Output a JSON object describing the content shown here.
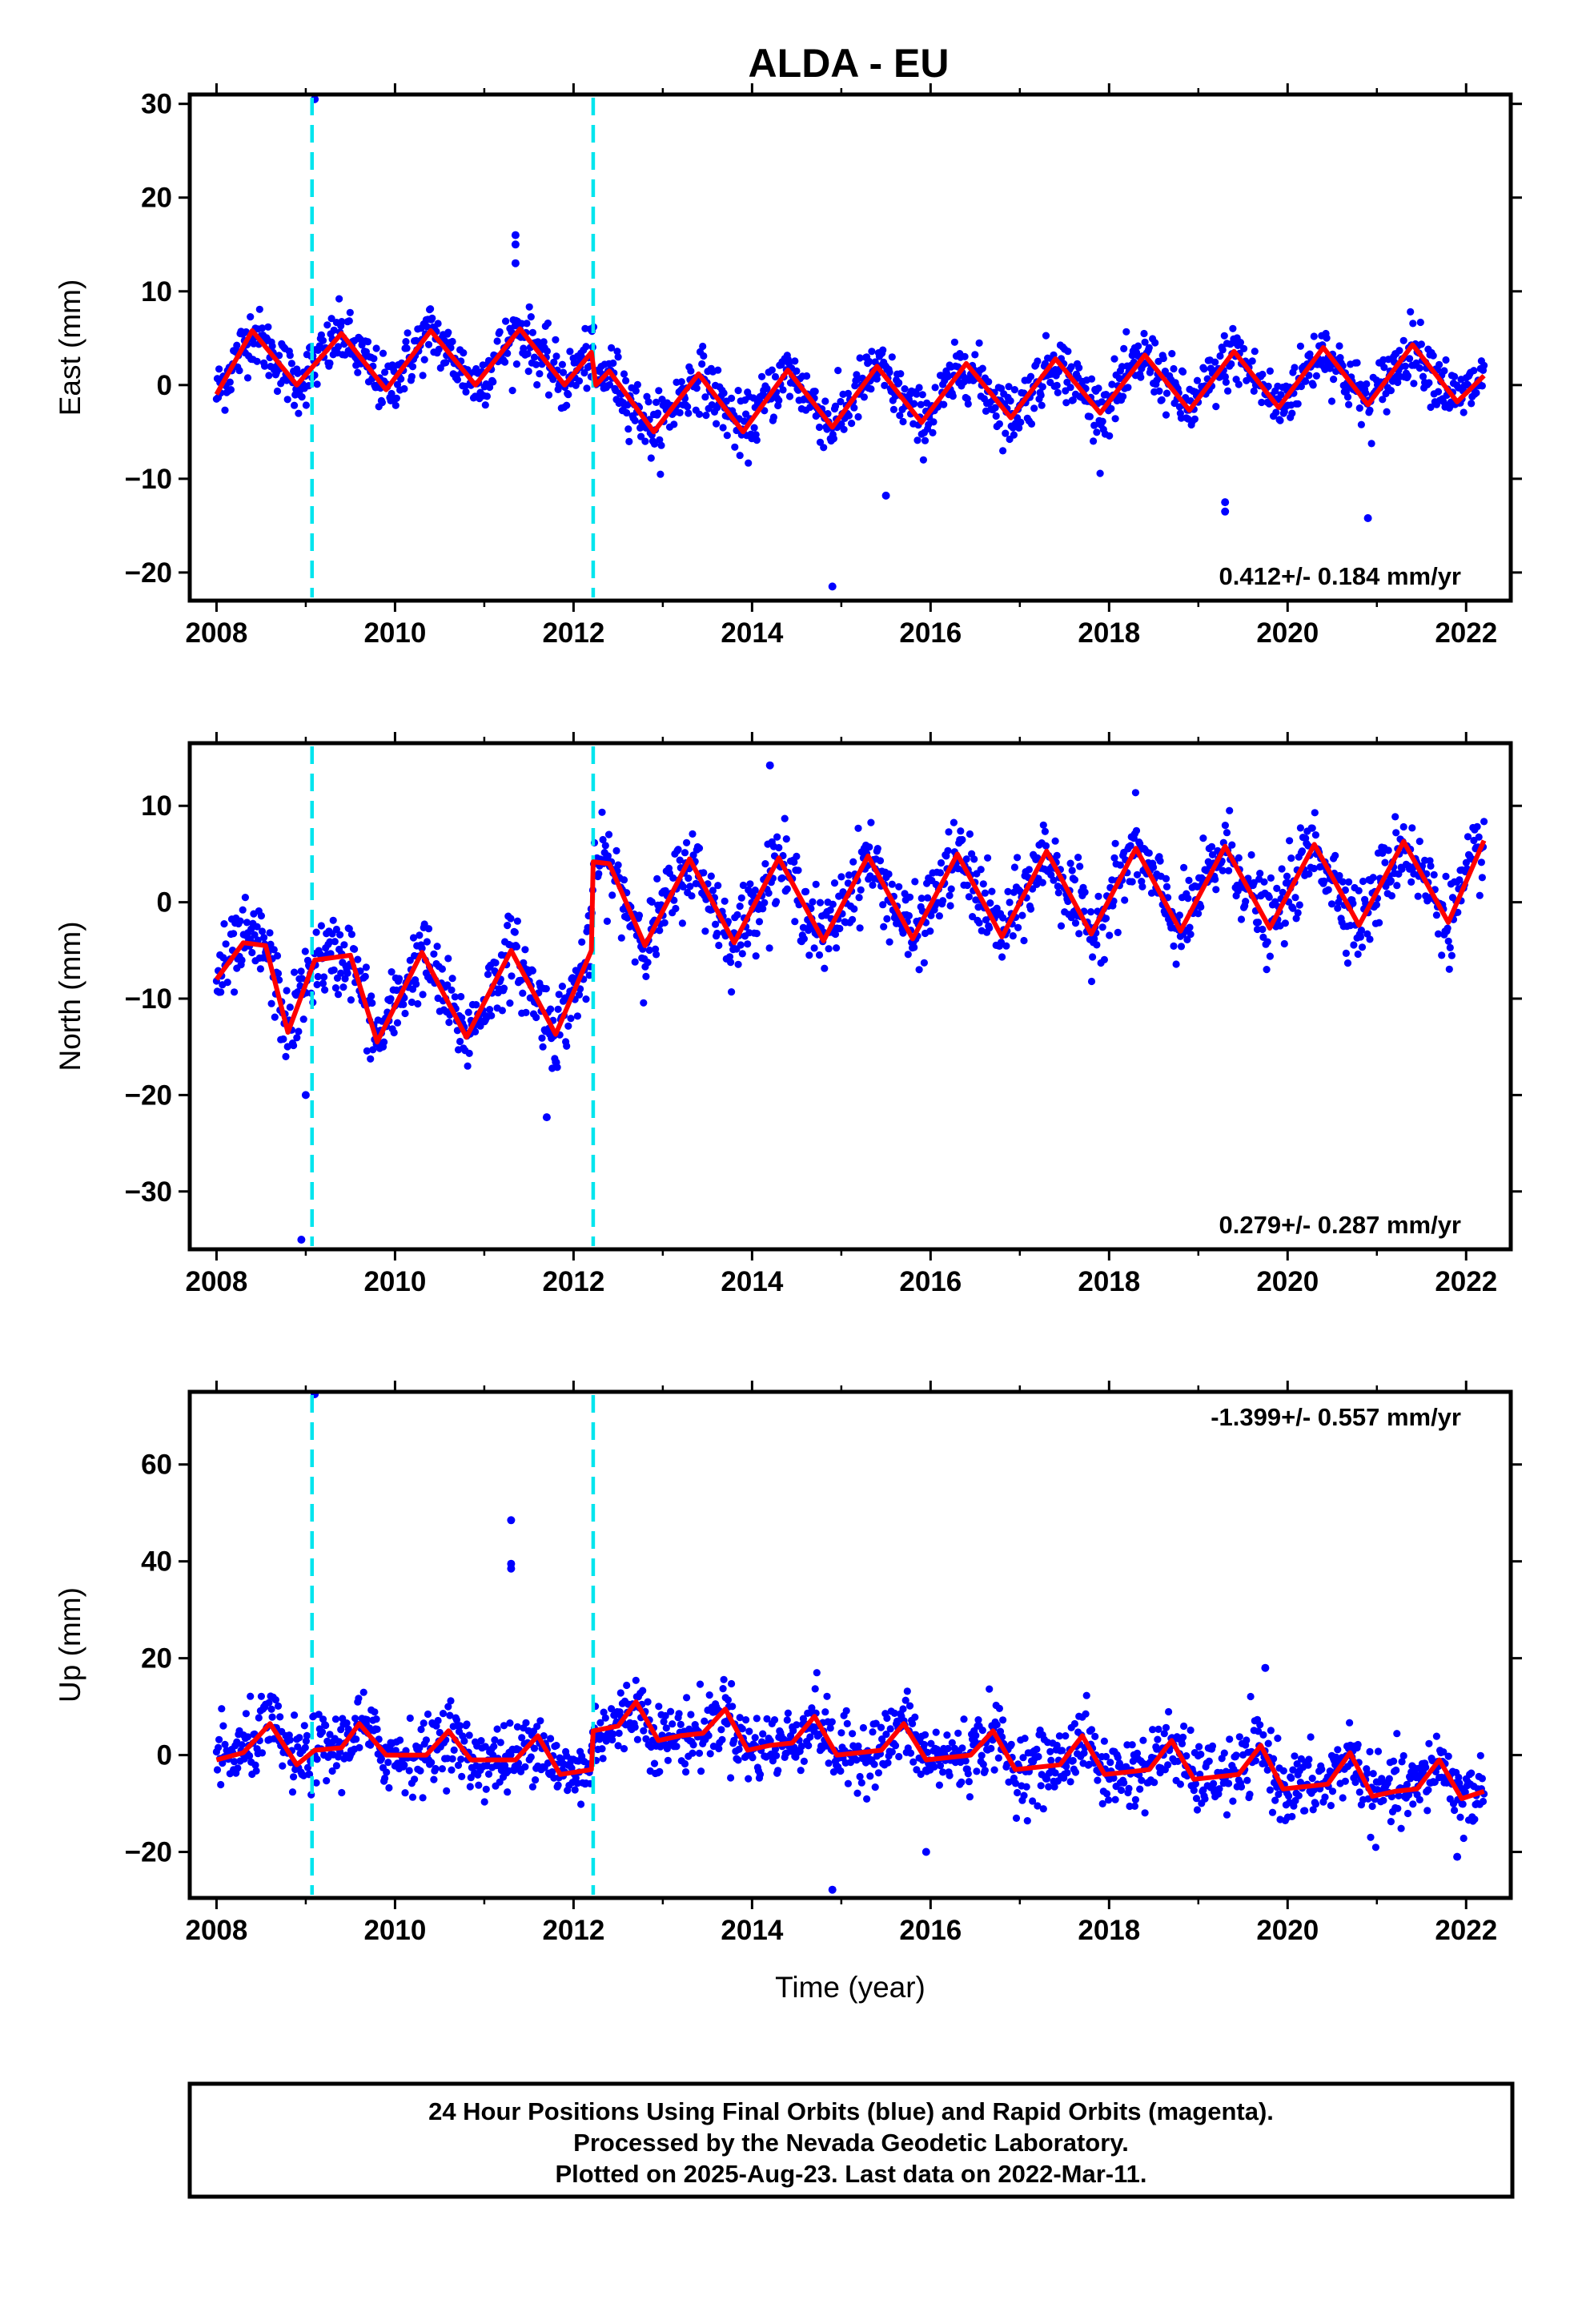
{
  "title": "ALDA - EU",
  "chart_data": [
    {
      "type": "scatter",
      "ylabel": "East (mm)",
      "xlabel": "",
      "xlim": [
        2007.7,
        2022.5
      ],
      "ylim": [
        -23,
        31
      ],
      "xticks": [
        2008,
        2010,
        2012,
        2014,
        2016,
        2018,
        2020,
        2022
      ],
      "yticks": [
        -20,
        -10,
        0,
        10,
        20,
        30
      ],
      "rate_label": "0.412+/- 0.184 mm/yr",
      "rate_position": "bottom-right",
      "offsets": [
        2009.07,
        2012.22
      ],
      "fit": {
        "x": [
          2008.0,
          2008.4,
          2008.9,
          2009.4,
          2009.9,
          2010.4,
          2010.9,
          2011.4,
          2011.9,
          2012.2,
          2012.25,
          2012.4,
          2012.9,
          2013.4,
          2013.9,
          2014.4,
          2014.9,
          2015.4,
          2015.9,
          2016.4,
          2016.9,
          2017.4,
          2017.9,
          2018.4,
          2018.9,
          2019.4,
          2019.9,
          2020.4,
          2020.9,
          2021.4,
          2021.9,
          2022.2
        ],
        "y": [
          -1,
          5.8,
          0,
          5.5,
          -0.5,
          5.8,
          0,
          6,
          0,
          3.5,
          0,
          1.5,
          -5,
          1.2,
          -5,
          1.6,
          -4.5,
          2,
          -4,
          2.3,
          -3.5,
          2.8,
          -3,
          3.2,
          -2.7,
          3.6,
          -2.4,
          4,
          -2.1,
          4.3,
          -1.8,
          1
        ]
      },
      "outliers": {
        "x": [
          2009.1,
          2011.35,
          2011.35,
          2011.35,
          2014.9,
          2015.5,
          2019.3,
          2019.3,
          2020.9
        ],
        "y": [
          30.5,
          16,
          15,
          13,
          -21.5,
          -11.8,
          -12.5,
          -13.5,
          -14.2
        ]
      },
      "series": [
        {
          "name": "Final Orbits",
          "color": "#0000ff",
          "noise_sd": 1.6
        },
        {
          "name": "Fit",
          "color": "#ff0000"
        }
      ]
    },
    {
      "type": "scatter",
      "ylabel": "North (mm)",
      "xlabel": "",
      "xlim": [
        2007.7,
        2022.5
      ],
      "ylim": [
        -36,
        16.5
      ],
      "xticks": [
        2008,
        2010,
        2012,
        2014,
        2016,
        2018,
        2020,
        2022
      ],
      "yticks": [
        -30,
        -20,
        -10,
        0,
        10
      ],
      "rate_label": "0.279+/- 0.287 mm/yr",
      "rate_position": "bottom-right",
      "offsets": [
        2009.07,
        2012.22
      ],
      "fit": {
        "x": [
          2008.0,
          2008.3,
          2008.55,
          2008.8,
          2009.1,
          2009.5,
          2009.8,
          2010.3,
          2010.8,
          2011.3,
          2011.8,
          2012.2,
          2012.22,
          2012.4,
          2012.8,
          2013.3,
          2013.8,
          2014.3,
          2014.8,
          2015.3,
          2015.8,
          2016.3,
          2016.8,
          2017.3,
          2017.8,
          2018.3,
          2018.8,
          2019.3,
          2019.8,
          2020.3,
          2020.8,
          2021.3,
          2021.8,
          2022.2
        ],
        "y": [
          -8,
          -4.2,
          -4.5,
          -13.5,
          -6,
          -5.5,
          -14.5,
          -5.2,
          -14,
          -5,
          -13.7,
          -5,
          4.2,
          4,
          -4.5,
          4.5,
          -4.2,
          4.6,
          -4,
          4.8,
          -3.8,
          5,
          -3.6,
          5.3,
          -3.3,
          5.6,
          -3,
          5.8,
          -2.7,
          6,
          -2.4,
          6.3,
          -2.1,
          6.4
        ]
      },
      "outliers": {
        "x": [
          2008.95,
          2009.0,
          2011.7,
          2014.2
        ],
        "y": [
          -35,
          -20,
          -22.3,
          14.2
        ]
      },
      "series": [
        {
          "name": "Final Orbits",
          "color": "#0000ff",
          "noise_sd": 2.0
        },
        {
          "name": "Fit",
          "color": "#ff0000"
        }
      ]
    },
    {
      "type": "scatter",
      "ylabel": "Up (mm)",
      "xlabel": "Time (year)",
      "xlim": [
        2007.7,
        2022.5
      ],
      "ylim": [
        -29.5,
        75
      ],
      "xticks": [
        2008,
        2010,
        2012,
        2014,
        2016,
        2018,
        2020,
        2022
      ],
      "yticks": [
        -20,
        0,
        20,
        40,
        60
      ],
      "rate_label": "-1.399+/- 0.557 mm/yr",
      "rate_position": "top-right",
      "offsets": [
        2009.07,
        2012.22
      ],
      "fit": {
        "x": [
          2008.0,
          2008.3,
          2008.6,
          2008.9,
          2009.1,
          2009.4,
          2009.6,
          2009.9,
          2010.1,
          2010.35,
          2010.6,
          2010.85,
          2011.1,
          2011.35,
          2011.6,
          2011.85,
          2012.2,
          2012.22,
          2012.5,
          2012.7,
          2012.95,
          2013.2,
          2013.45,
          2013.7,
          2013.95,
          2014.2,
          2014.45,
          2014.7,
          2014.95,
          2015.2,
          2015.45,
          2015.7,
          2015.95,
          2016.2,
          2016.45,
          2016.7,
          2016.95,
          2017.2,
          2017.45,
          2017.7,
          2017.95,
          2018.2,
          2018.45,
          2018.7,
          2018.95,
          2019.2,
          2019.45,
          2019.7,
          2019.95,
          2020.2,
          2020.45,
          2020.7,
          2020.95,
          2021.2,
          2021.45,
          2021.7,
          2021.95,
          2022.2
        ],
        "y": [
          -1,
          0.5,
          6.5,
          -2,
          1,
          1.5,
          6.5,
          0,
          0,
          0,
          5,
          -1,
          -1,
          -1,
          4,
          -4,
          -3,
          5,
          6,
          11,
          3,
          4,
          4.5,
          9.5,
          1,
          2,
          2.5,
          8,
          0,
          0.5,
          1,
          6.5,
          -1,
          -0.5,
          0,
          5,
          -3,
          -2.5,
          -2,
          4,
          -4,
          -3.5,
          -3,
          3,
          -5,
          -4.5,
          -4,
          2,
          -7,
          -6.5,
          -6,
          0.5,
          -8.5,
          -7.5,
          -7,
          -1,
          -9,
          -7.5
        ]
      },
      "outliers": {
        "x": [
          2009.1,
          2011.3,
          2011.3,
          2011.3,
          2014.9,
          2015.95,
          2019.75,
          2021.9
        ],
        "y": [
          74.5,
          48.5,
          39.5,
          38.5,
          -27.8,
          -20,
          18,
          -21
        ]
      },
      "series": [
        {
          "name": "Final Orbits",
          "color": "#0000ff",
          "noise_sd": 3.6
        },
        {
          "name": "Fit",
          "color": "#ff0000"
        }
      ]
    }
  ],
  "colors": {
    "data_points": "#0000ff",
    "fit_line": "#ff0000",
    "offset_lines": "#00e5ee",
    "frame": "#000000"
  },
  "caption": {
    "line1": "24 Hour Positions Using Final Orbits (blue) and Rapid Orbits (magenta).",
    "line2": "Processed by the Nevada Geodetic Laboratory.",
    "line3": "Plotted on 2025-Aug-23. Last data on 2022-Mar-11."
  }
}
